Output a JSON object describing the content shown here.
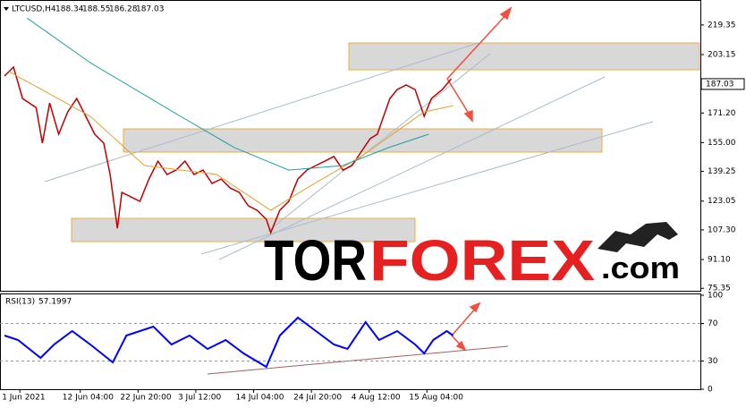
{
  "chart_data": [
    {
      "type": "line",
      "symbol": "LTCUSD,H4",
      "ohlc": [
        188.34,
        188.55,
        186.28,
        187.03
      ],
      "logo": [
        "TOR",
        "FOREX",
        ".com"
      ],
      "xlim": [
        -22,
        754
      ],
      "ylim": [
        74,
        232
      ],
      "xticks": [
        {
          "value": 0,
          "label": "1 Jun 2021"
        },
        {
          "value": 67,
          "label": "12 Jun 04:00"
        },
        {
          "value": 131,
          "label": "22 Jun 20:00"
        },
        {
          "value": 195,
          "label": "3 Jul 12:00"
        },
        {
          "value": 259,
          "label": "14 Jul 04:00"
        },
        {
          "value": 323,
          "label": "24 Jul 20:00"
        },
        {
          "value": 387,
          "label": "4 Aug 12:00"
        },
        {
          "value": 451,
          "label": "15 Aug 04:00"
        }
      ],
      "yticks": [
        219.35,
        203.15,
        {
          "value": 171.2,
          "label": "171.20"
        },
        {
          "value": 155,
          "label": "155.00"
        },
        139.25,
        123.05,
        {
          "value": 107.3,
          "label": "107.30"
        },
        {
          "value": 91.1,
          "label": "91.10"
        },
        75.35
      ],
      "series": [
        {
          "color": "#c00000",
          "x": [
            -17,
            -7,
            3,
            18,
            25,
            33,
            43,
            53,
            63,
            73,
            83,
            93,
            100,
            108,
            113,
            123,
            133,
            143,
            153,
            163,
            173,
            183,
            193,
            203,
            213,
            223,
            233,
            243,
            253,
            263,
            273,
            278,
            288,
            298,
            308,
            318,
            328,
            338,
            348,
            358,
            368,
            378,
            388,
            396,
            403,
            410,
            418,
            428,
            438,
            448,
            456,
            468,
            478
          ],
          "values": [
            191.4,
            196.3,
            179.1,
            174.2,
            154.7,
            176.7,
            159.6,
            171.8,
            179.1,
            169.4,
            159.6,
            154.7,
            137.6,
            108.2,
            127.8,
            125.3,
            122.9,
            135.1,
            144.9,
            137.6,
            140.0,
            144.9,
            137.6,
            140.0,
            132.7,
            135.1,
            130.2,
            127.8,
            120.5,
            118.0,
            113.1,
            105.8,
            118.0,
            122.9,
            135.1,
            140.0,
            142.5,
            144.9,
            147.4,
            140.0,
            142.5,
            149.8,
            157.1,
            159.6,
            169.4,
            179.1,
            184.0,
            186.5,
            184.0,
            169.4,
            179.1,
            184.0,
            189.9
          ]
        },
        {
          "color": "#e0a030",
          "x": [
            -12,
            78,
            138,
            218,
            278,
            318,
            378,
            448,
            480
          ],
          "values": [
            193.8,
            169.4,
            142.5,
            137.6,
            118.0,
            130.2,
            147.4,
            171.8,
            175.2
          ]
        },
        {
          "color": "#20a0a0",
          "x": [
            8,
            78,
            178,
            238,
            298,
            358,
            408,
            453
          ],
          "values": [
            223.1,
            198.7,
            169.4,
            152.2,
            140.0,
            142.5,
            152.2,
            159.6
          ]
        }
      ]
    },
    {
      "type": "line",
      "title": "RSI(13)",
      "last": 57.1997,
      "ylim": [
        0,
        100
      ],
      "yticks": [
        100,
        70,
        30,
        0
      ],
      "levels": [
        70,
        30
      ],
      "series": [
        {
          "color": "#0000ff",
          "x": [
            -17,
            -2,
            23,
            38,
            58,
            78,
            103,
            118,
            148,
            168,
            188,
            208,
            228,
            248,
            273,
            288,
            308,
            328,
            348,
            363,
            383,
            398,
            418,
            438,
            448,
            458,
            473,
            480
          ],
          "values": [
            57.1,
            52.4,
            33.3,
            47.6,
            61.9,
            47.6,
            28.6,
            57.1,
            66.7,
            47.6,
            57.1,
            42.9,
            52.4,
            38.1,
            23.8,
            57.1,
            76.2,
            61.9,
            47.6,
            42.9,
            71.4,
            52.4,
            61.9,
            47.6,
            38.1,
            52.4,
            61.9,
            57.1
          ]
        }
      ]
    }
  ]
}
